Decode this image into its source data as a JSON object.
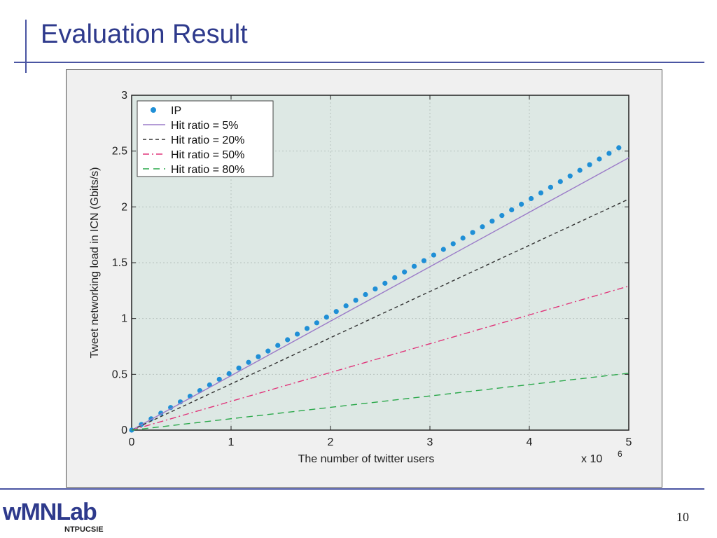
{
  "slide": {
    "title": "Evaluation Result",
    "page_number": "10",
    "logo_text": "wMNLab",
    "logo_subtext": "NTPUCSIE"
  },
  "colors": {
    "title": "#2e3a8c",
    "rule": "#4a55a2",
    "plot_bg": "#dde8e4",
    "ip": "#1f8fd6",
    "hit5": "#9b7bc8",
    "hit20": "#333333",
    "hit50": "#e0357a",
    "hit80": "#2aa84a"
  },
  "chart_data": {
    "type": "line",
    "title": "",
    "xlabel": "The number of twitter users",
    "ylabel": "Tweet networking load in ICN (Gbits/s)",
    "x_multiplier_label": "x 10",
    "x_multiplier_exp": "6",
    "xlim": [
      0,
      5
    ],
    "ylim": [
      0,
      3
    ],
    "xticks": [
      "0",
      "1",
      "2",
      "3",
      "4",
      "5"
    ],
    "yticks": [
      "0",
      "0.5",
      "1",
      "1.5",
      "2",
      "2.5",
      "3"
    ],
    "grid": true,
    "legend_position": "top-left",
    "series": [
      {
        "name": "IP",
        "style": "dots",
        "color": "#1f8fd6",
        "x": [
          0,
          4.9
        ],
        "y": [
          0,
          2.53
        ]
      },
      {
        "name": "Hit ratio = 5%",
        "style": "solid",
        "color": "#9b7bc8",
        "x": [
          0,
          5
        ],
        "y": [
          0,
          2.44
        ]
      },
      {
        "name": "Hit ratio = 20%",
        "style": "dashed",
        "color": "#333333",
        "x": [
          0,
          5
        ],
        "y": [
          0,
          2.07
        ]
      },
      {
        "name": "Hit ratio = 50%",
        "style": "dashdot",
        "color": "#e0357a",
        "x": [
          0,
          5
        ],
        "y": [
          0,
          1.29
        ]
      },
      {
        "name": "Hit ratio = 80%",
        "style": "longdash",
        "color": "#2aa84a",
        "x": [
          0,
          5
        ],
        "y": [
          0,
          0.51
        ]
      }
    ]
  }
}
